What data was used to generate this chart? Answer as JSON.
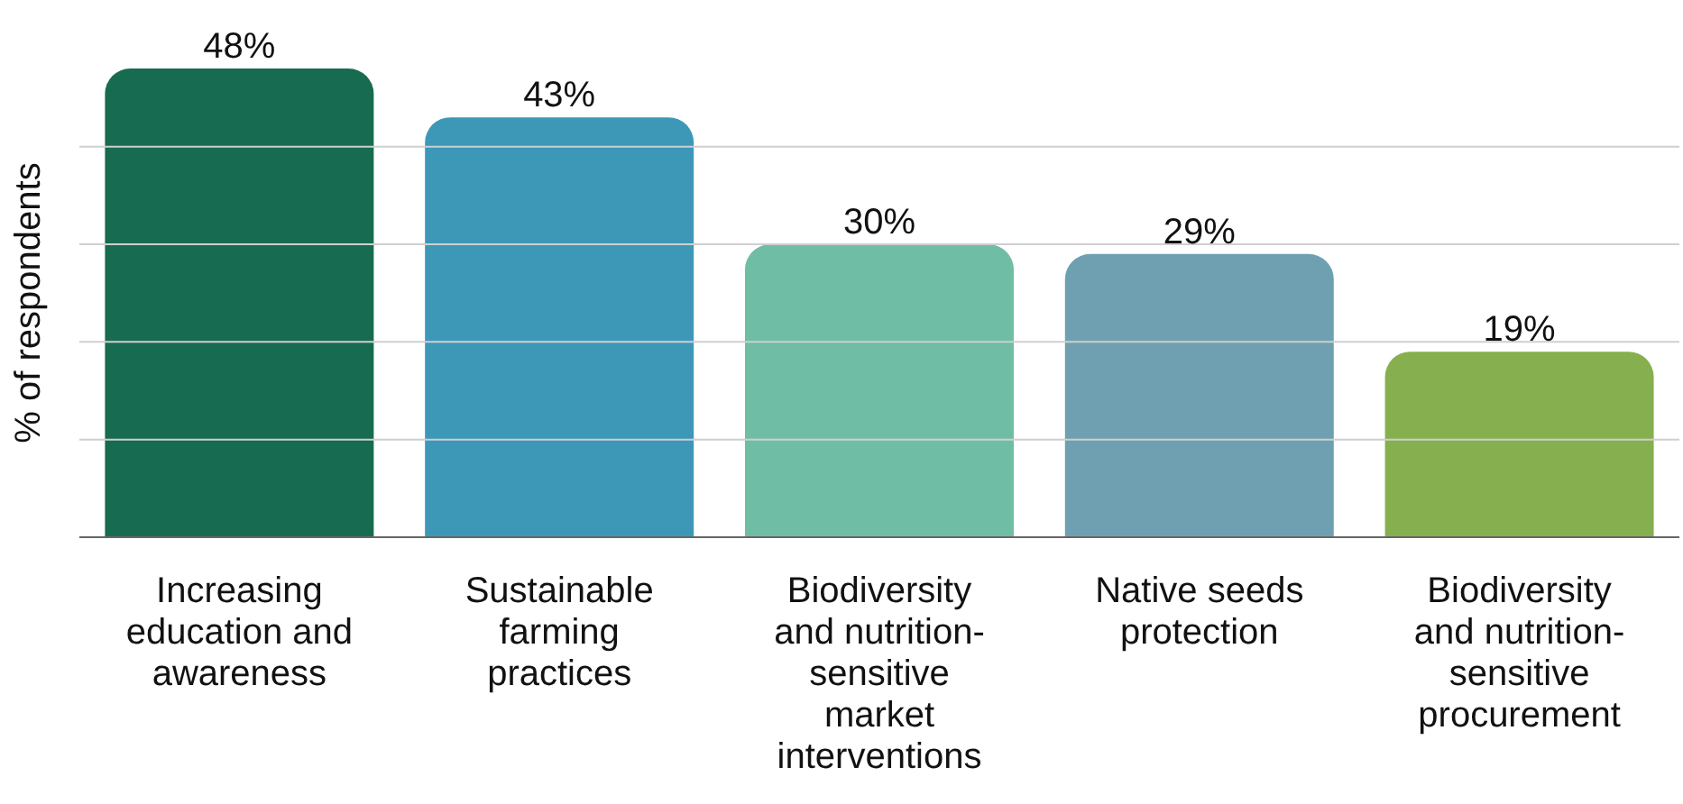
{
  "chart_data": {
    "type": "bar",
    "ylabel": "% of respondents",
    "categories": [
      "Increasing education and awareness",
      "Sustainable farming practices",
      "Biodiversity and nutrition-sensitive market interventions",
      "Native seeds protection",
      "Biodiversity and nutrition-sensitive procurement"
    ],
    "values": [
      48,
      43,
      30,
      29,
      19
    ],
    "colors": [
      "#176b50",
      "#3d98b8",
      "#70bda5",
      "#6fa0b2",
      "#86b04f"
    ],
    "value_labels": [
      "48%",
      "43%",
      "30%",
      "29%",
      "19%"
    ],
    "yticks": [
      {
        "value": 10,
        "label": null
      },
      {
        "value": 20,
        "label": null
      },
      {
        "value": 30,
        "label": null
      },
      {
        "value": 40,
        "label": null
      }
    ],
    "grid": "y",
    "tick_labels": "x"
  }
}
